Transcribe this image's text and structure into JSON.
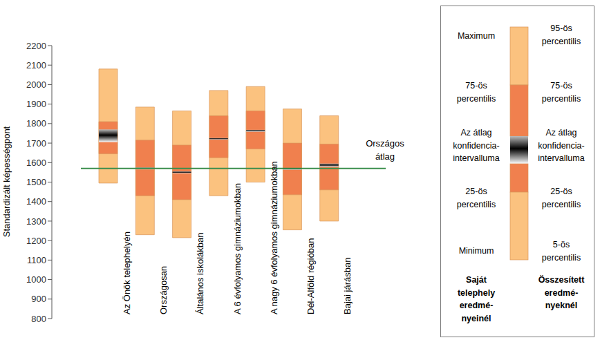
{
  "chart_data": {
    "type": "percentile_bar",
    "y_label": "Standardizált képességpont",
    "categories": [
      "Az Önök telephelyén",
      "Országosan",
      "Általános iskolákban",
      "A 6 évfolyamos gimnáziumokban",
      "A nagy 6 évfolyamos gimnáziumokban",
      "Dél-Alföld régióban",
      "Bajai járásban"
    ],
    "series": [
      {
        "type": "range",
        "color": "#FBC27F",
        "low": [
          1495,
          1230,
          1215,
          1430,
          1500,
          1255,
          1300
        ],
        "high": [
          2080,
          1885,
          1865,
          1970,
          1990,
          1875,
          1840
        ]
      },
      {
        "type": "range",
        "color": "#F0804E",
        "low": [
          1645,
          1430,
          1410,
          1625,
          1670,
          1435,
          1460
        ],
        "high": [
          1810,
          1715,
          1690,
          1840,
          1865,
          1700,
          1695
        ]
      },
      {
        "type": "confidence_interval",
        "color": "#000000",
        "low": [
          1705,
          1565,
          1545,
          1718,
          1758,
          1563,
          1578
        ],
        "high": [
          1770,
          1575,
          1555,
          1726,
          1768,
          1571,
          1595
        ]
      }
    ],
    "reference_line": {
      "value": 1570,
      "label": "Országos átlag",
      "color": "#3A8E4C"
    },
    "ylim": [
      800,
      2200
    ],
    "yticks": [
      800,
      900,
      1000,
      1100,
      1200,
      1300,
      1400,
      1500,
      1600,
      1700,
      1800,
      1900,
      2000,
      2100,
      2200
    ],
    "grid": false,
    "legend_key": {
      "left": {
        "labels": [
          [
            "Maximum"
          ],
          [
            "75-ös",
            "percentilis"
          ],
          [
            "Az átlag",
            "konfidencia-",
            "intervalluma"
          ],
          [
            "25-ös",
            "percentilis"
          ],
          [
            "Minimum"
          ]
        ],
        "title": [
          "Saját",
          "telephely",
          "eredmé-",
          "nyeinél"
        ]
      },
      "right": {
        "labels": [
          [
            "95-ös",
            "percentilis"
          ],
          [
            "75-ös",
            "percentilis"
          ],
          [
            "Az átlag",
            "konfidencia-",
            "intervalluma"
          ],
          [
            "25-ös",
            "percentilis"
          ],
          [
            "5-ös",
            "percentilis"
          ]
        ],
        "title": [
          "Összesített",
          "eredmé-",
          "nyeknél"
        ]
      }
    }
  }
}
